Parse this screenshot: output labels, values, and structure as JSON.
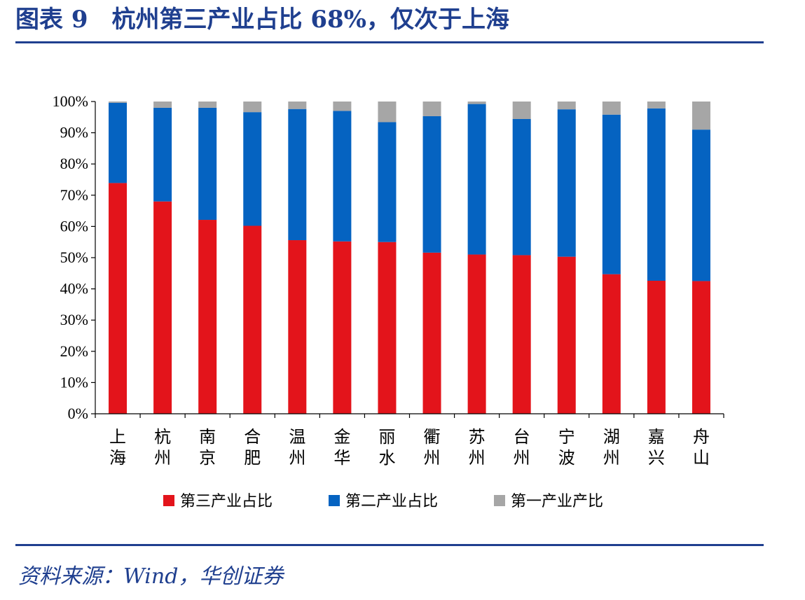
{
  "header": {
    "title": "图表 9　杭州第三产业占比 68%，仅次于上海"
  },
  "footer": {
    "source": "资料来源：Wind，华创证券"
  },
  "chart_data": {
    "type": "bar",
    "stacked": true,
    "categories": [
      "上海",
      "杭州",
      "南京",
      "合肥",
      "温州",
      "金华",
      "丽水",
      "衢州",
      "苏州",
      "台州",
      "宁波",
      "湖州",
      "嘉兴",
      "舟山"
    ],
    "series": [
      {
        "name": "第三产业占比",
        "color": "#e3141b",
        "values": [
          73.9,
          68.0,
          62.1,
          60.2,
          55.6,
          55.2,
          55.0,
          51.6,
          51.0,
          50.8,
          50.3,
          44.7,
          42.6,
          42.5
        ]
      },
      {
        "name": "第二产业占比",
        "color": "#0563c1",
        "values": [
          25.7,
          30.0,
          35.9,
          36.4,
          42.0,
          41.8,
          38.4,
          43.7,
          48.2,
          43.6,
          47.2,
          51.1,
          55.2,
          48.5
        ]
      },
      {
        "name": "第一产业产比",
        "color": "#a6a6a6",
        "values": [
          0.4,
          2.0,
          2.0,
          3.4,
          2.4,
          3.0,
          6.6,
          4.7,
          0.8,
          5.6,
          2.5,
          4.2,
          2.2,
          9.0
        ]
      }
    ],
    "ylim": [
      0,
      100
    ],
    "yticks": [
      "0%",
      "10%",
      "20%",
      "30%",
      "40%",
      "50%",
      "60%",
      "70%",
      "80%",
      "90%",
      "100%"
    ],
    "legend_position": "bottom",
    "grid": false
  }
}
